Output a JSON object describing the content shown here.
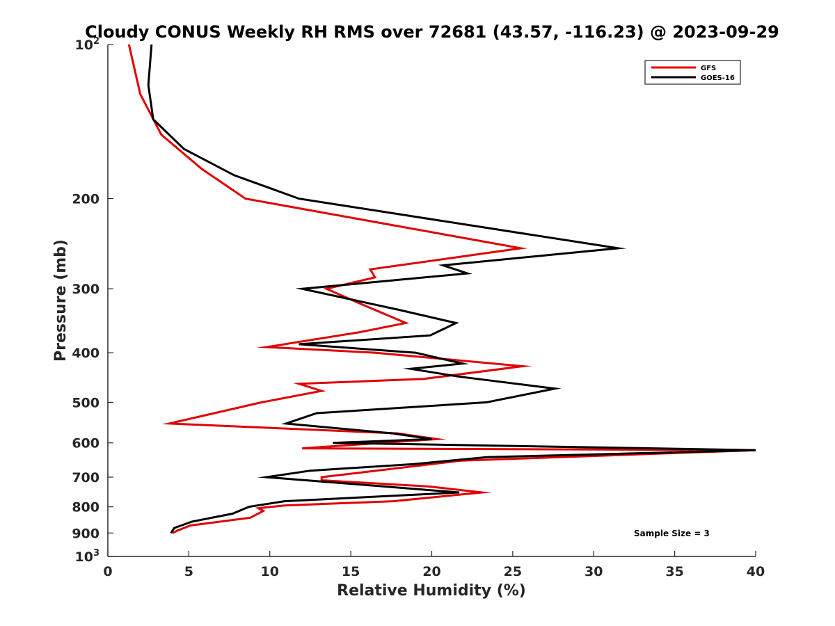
{
  "chart_data": {
    "type": "line",
    "title": "Cloudy CONUS Weekly RH RMS over 72681 (43.57, -116.23) @ 2023-09-29",
    "xlabel": "Relative Humidity (%)",
    "ylabel": "Pressure (mb)",
    "xlim": [
      0,
      40
    ],
    "ylim": [
      100,
      1000
    ],
    "y_scale": "log",
    "y_reversed": true,
    "grid": false,
    "legend_position": "top-right",
    "x_ticks": [
      "0",
      "5",
      "10",
      "15",
      "20",
      "25",
      "30",
      "35",
      "40"
    ],
    "y_ticks": [
      {
        "value": 100,
        "base": "10",
        "exp": "2"
      },
      {
        "value": 200,
        "label": "200"
      },
      {
        "value": 300,
        "label": "300"
      },
      {
        "value": 400,
        "label": "400"
      },
      {
        "value": 500,
        "label": "500"
      },
      {
        "value": 600,
        "label": "600"
      },
      {
        "value": 700,
        "label": "700"
      },
      {
        "value": 800,
        "label": "800"
      },
      {
        "value": 900,
        "label": "900"
      },
      {
        "value": 1000,
        "base": "10",
        "exp": "3"
      }
    ],
    "series": [
      {
        "name": "GFS",
        "color": "#e00000",
        "points": [
          [
            1.3,
            100
          ],
          [
            2.0,
            125
          ],
          [
            3.3,
            150
          ],
          [
            5.8,
            175
          ],
          [
            8.5,
            200
          ],
          [
            25.5,
            250
          ],
          [
            16.2,
            275
          ],
          [
            16.5,
            285
          ],
          [
            13.5,
            300
          ],
          [
            15.5,
            320
          ],
          [
            18.4,
            350
          ],
          [
            15.5,
            365
          ],
          [
            9.8,
            390
          ],
          [
            16.5,
            400
          ],
          [
            25.6,
            425
          ],
          [
            19.5,
            450
          ],
          [
            11.8,
            460
          ],
          [
            13.2,
            475
          ],
          [
            9.5,
            500
          ],
          [
            3.8,
            550
          ],
          [
            17.9,
            575
          ],
          [
            20.3,
            590
          ],
          [
            12.0,
            615
          ],
          [
            40.0,
            620
          ],
          [
            21.8,
            650
          ],
          [
            13.2,
            700
          ],
          [
            13.2,
            710
          ],
          [
            19.8,
            730
          ],
          [
            23.1,
            750
          ],
          [
            17.6,
            780
          ],
          [
            10.9,
            795
          ],
          [
            9.3,
            805
          ],
          [
            9.6,
            815
          ],
          [
            8.8,
            840
          ],
          [
            5.1,
            870
          ],
          [
            4.3,
            890
          ],
          [
            4.0,
            900
          ]
        ]
      },
      {
        "name": "GOES-16",
        "color": "#000000",
        "points": [
          [
            2.7,
            100
          ],
          [
            2.5,
            120
          ],
          [
            2.8,
            140
          ],
          [
            4.7,
            160
          ],
          [
            7.8,
            180
          ],
          [
            11.8,
            200
          ],
          [
            31.5,
            250
          ],
          [
            20.7,
            270
          ],
          [
            22.2,
            280
          ],
          [
            12.0,
            300
          ],
          [
            18.0,
            330
          ],
          [
            21.5,
            350
          ],
          [
            19.9,
            370
          ],
          [
            11.8,
            385
          ],
          [
            19.0,
            400
          ],
          [
            21.9,
            420
          ],
          [
            18.7,
            430
          ],
          [
            21.6,
            445
          ],
          [
            27.6,
            470
          ],
          [
            23.4,
            500
          ],
          [
            12.9,
            525
          ],
          [
            11.0,
            550
          ],
          [
            17.6,
            575
          ],
          [
            20.0,
            590
          ],
          [
            13.9,
            600
          ],
          [
            40.0,
            620
          ],
          [
            23.4,
            640
          ],
          [
            18.9,
            660
          ],
          [
            12.5,
            680
          ],
          [
            9.8,
            700
          ],
          [
            21.7,
            750
          ],
          [
            10.9,
            780
          ],
          [
            8.7,
            800
          ],
          [
            7.7,
            825
          ],
          [
            5.2,
            855
          ],
          [
            4.1,
            880
          ],
          [
            3.9,
            900
          ]
        ]
      }
    ],
    "annotation": "Sample Size = 3"
  }
}
